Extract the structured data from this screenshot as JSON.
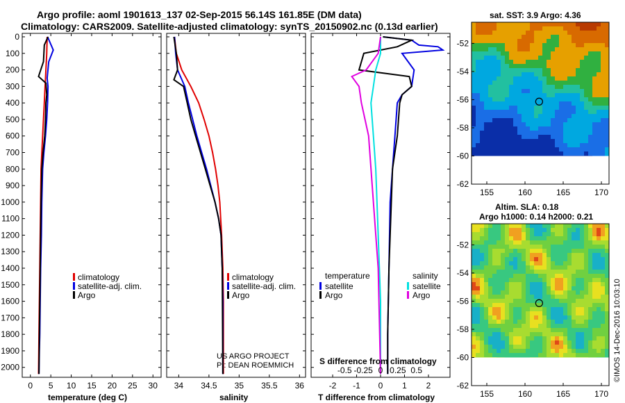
{
  "header": {
    "title_line1": "Argo profile: aoml 1901613_137 02-Sep-2015 56.14S 161.85E (DM data)",
    "title_line2": "Climatology: CARS2009. Satellite-adjusted climatology: synTS_20150902.nc (0.13d earlier)"
  },
  "colors": {
    "argo": "#000000",
    "climatology": "#e00000",
    "satellite": "#0000e0",
    "sat_salinity": "#00e0e0",
    "argo_salinity": "#e000e0"
  },
  "chart_data": [
    {
      "type": "line",
      "name": "temperature",
      "xlabel": "temperature (deg C)",
      "ylabel": "",
      "xlim": [
        -2,
        32
      ],
      "ylim": [
        2060,
        0
      ],
      "y_reversed": true,
      "xticks": [
        0,
        5,
        10,
        15,
        20,
        25,
        30
      ],
      "yticks": [
        0,
        100,
        200,
        300,
        400,
        500,
        600,
        700,
        800,
        900,
        1000,
        1100,
        1200,
        1300,
        1400,
        1500,
        1600,
        1700,
        1800,
        1900,
        2000
      ],
      "legend": [
        "climatology",
        "satellite-adj. clim.",
        "Argo"
      ],
      "series": [
        {
          "name": "climatology",
          "color": "#e00000",
          "x": [
            4.1,
            4.0,
            3.8,
            3.6,
            3.4,
            3.2,
            3.0,
            2.8,
            2.6,
            2.5,
            2.4,
            2.3,
            2.2,
            2.1,
            2.0
          ],
          "y": [
            0,
            100,
            200,
            300,
            400,
            500,
            600,
            700,
            800,
            1000,
            1200,
            1400,
            1600,
            1800,
            2040
          ]
        },
        {
          "name": "satellite-adj. clim.",
          "color": "#0000e0",
          "x": [
            4.2,
            5.6,
            4.5,
            4.1,
            4.3,
            4.2,
            4.0,
            3.7,
            3.3,
            3.0,
            2.8,
            2.7,
            2.5,
            2.4,
            2.3,
            2.2,
            2.1
          ],
          "y": [
            0,
            80,
            150,
            250,
            300,
            400,
            500,
            600,
            700,
            800,
            1000,
            1200,
            1400,
            1600,
            1800,
            1900,
            2040
          ]
        },
        {
          "name": "Argo",
          "color": "#000000",
          "x": [
            4.3,
            3.4,
            3.2,
            2.0,
            3.8,
            4.0,
            3.8,
            3.7,
            3.5,
            3.1,
            2.8,
            2.6,
            2.5,
            2.4,
            2.3,
            2.2,
            2.1
          ],
          "y": [
            0,
            50,
            150,
            240,
            280,
            350,
            400,
            500,
            600,
            700,
            800,
            1000,
            1200,
            1400,
            1600,
            1800,
            2040
          ]
        }
      ]
    },
    {
      "type": "line",
      "name": "salinity",
      "xlabel": "salinity",
      "ylabel": "",
      "xlim": [
        33.8,
        36.1
      ],
      "ylim": [
        2060,
        0
      ],
      "y_reversed": true,
      "xticks": [
        34,
        34.5,
        35,
        35.5,
        36
      ],
      "legend": [
        "climatology",
        "satellite-adj. clim.",
        "Argo"
      ],
      "series": [
        {
          "name": "climatology",
          "color": "#e00000",
          "x": [
            33.93,
            33.96,
            34.05,
            34.2,
            34.33,
            34.42,
            34.5,
            34.56,
            34.61,
            34.65,
            34.68,
            34.71,
            34.73,
            34.74,
            34.74
          ],
          "y": [
            0,
            100,
            200,
            300,
            400,
            500,
            600,
            700,
            800,
            900,
            1000,
            1200,
            1400,
            1600,
            2040
          ]
        },
        {
          "name": "satellite-adj. clim.",
          "color": "#0000e0",
          "x": [
            33.93,
            33.95,
            33.98,
            34.1,
            34.16,
            34.23,
            34.3,
            34.38,
            34.46,
            34.53,
            34.6,
            34.66,
            34.7,
            34.72,
            34.73,
            34.73
          ],
          "y": [
            0,
            100,
            200,
            300,
            400,
            500,
            600,
            700,
            800,
            900,
            1000,
            1100,
            1200,
            1400,
            1600,
            2040
          ]
        },
        {
          "name": "Argo",
          "color": "#000000",
          "x": [
            33.92,
            33.96,
            33.98,
            33.92,
            34.08,
            34.14,
            34.2,
            34.28,
            34.36,
            34.44,
            34.52,
            34.6,
            34.66,
            34.7,
            34.72,
            34.73
          ],
          "y": [
            0,
            100,
            200,
            260,
            300,
            400,
            500,
            600,
            700,
            800,
            900,
            1000,
            1100,
            1200,
            1400,
            2040
          ]
        }
      ]
    },
    {
      "type": "line",
      "name": "differences",
      "xlabel": "T difference from climatology",
      "xlabel_top": "S difference from climatology",
      "xlim": [
        -2.9,
        2.9
      ],
      "ylim": [
        2060,
        0
      ],
      "y_reversed": true,
      "xticks": [
        -2,
        -1,
        0,
        1,
        2
      ],
      "xticks_top": [
        "-0.5",
        "-0.25",
        "0",
        "0.25",
        "0.5"
      ],
      "legend_left_title": "temperature",
      "legend_left": [
        "satellite",
        "Argo"
      ],
      "legend_right_title": "salinity",
      "legend_right": [
        "satellite",
        "Argo"
      ],
      "series": [
        {
          "name": "temperature satellite",
          "color": "#0000e0",
          "x": [
            0.1,
            1.3,
            1.6,
            2.4,
            2.6,
            0.9,
            1.4,
            1.3,
            0.9,
            0.7,
            0.6,
            0.5,
            0.4,
            0.35,
            0.3,
            0.3
          ],
          "y": [
            0,
            20,
            50,
            60,
            80,
            100,
            200,
            300,
            350,
            400,
            600,
            800,
            1000,
            1400,
            1800,
            2040
          ]
        },
        {
          "name": "temperature Argo",
          "color": "#000000",
          "x": [
            0.1,
            1.3,
            0.7,
            -0.7,
            -0.9,
            1.2,
            1.3,
            0.9,
            0.8,
            0.7,
            0.5,
            0.45,
            0.4,
            0.35,
            0.3,
            0.3
          ],
          "y": [
            0,
            20,
            60,
            100,
            200,
            240,
            300,
            350,
            400,
            600,
            800,
            1000,
            1200,
            1400,
            1800,
            2040
          ]
        },
        {
          "name": "salinity satellite",
          "color": "#00e0e0",
          "x": [
            0.0,
            0.0,
            -0.2,
            -0.3,
            -0.4,
            -0.3,
            -0.2,
            -0.1,
            0.0,
            0.0
          ],
          "y": [
            0,
            100,
            200,
            300,
            400,
            600,
            800,
            1200,
            1600,
            2040
          ]
        },
        {
          "name": "salinity Argo",
          "color": "#e000e0",
          "x": [
            0.0,
            -0.1,
            -0.6,
            -1.2,
            -0.9,
            -0.8,
            -0.5,
            -0.3,
            -0.1,
            0.0
          ],
          "y": [
            0,
            100,
            200,
            240,
            300,
            400,
            600,
            1000,
            1400,
            2040
          ]
        }
      ]
    }
  ],
  "maps": {
    "sst": {
      "title": "sat. SST: 3.9 Argo: 4.36",
      "lon_ticks": [
        "155",
        "160",
        "165",
        "170"
      ],
      "lat_ticks": [
        "-52",
        "-54",
        "-56",
        "-58",
        "-60",
        "-62"
      ]
    },
    "sla": {
      "title_line1": "Altim. SLA: 0.18",
      "title_line2": "Argo h1000: 0.14 h2000: 0.21",
      "lon_ticks": [
        "155",
        "160",
        "165",
        "170"
      ],
      "lat_ticks": [
        "-52",
        "-54",
        "-56",
        "-58",
        "-60",
        "-62"
      ]
    },
    "float_position": {
      "lon": 161.85,
      "lat": -56.14
    },
    "lon_range": [
      153,
      171
    ],
    "lat_range": [
      -62,
      -50.5
    ],
    "data_lat_min": -60
  },
  "footer": {
    "project_line1": "US ARGO PROJECT",
    "project_line2": "PI: DEAN ROEMMICH",
    "credit": "©IMOS 14-Dec-2016 10:03:10"
  }
}
